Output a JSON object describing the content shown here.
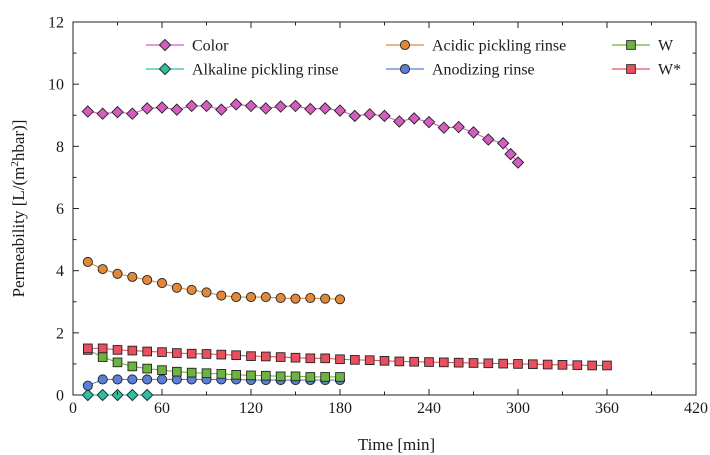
{
  "chart_data": {
    "type": "scatter",
    "xlabel": "Time [min]",
    "ylabel_parts": [
      "Permeability [L/(m",
      "2",
      "hbar)]"
    ],
    "xlim": [
      0,
      420
    ],
    "ylim": [
      0,
      12
    ],
    "xticks": [
      0,
      60,
      120,
      180,
      240,
      300,
      360,
      420
    ],
    "yticks": [
      0,
      2,
      4,
      6,
      8,
      10,
      12
    ],
    "grid": false,
    "legend": "top, two rows of three, inside plot",
    "series": [
      {
        "name": "Color",
        "marker": "diamond",
        "color": "#d45ec0",
        "x": [
          10,
          20,
          30,
          40,
          50,
          60,
          70,
          80,
          90,
          100,
          110,
          120,
          130,
          140,
          150,
          160,
          170,
          180,
          190,
          200,
          210,
          220,
          230,
          240,
          250,
          260,
          270,
          280,
          290,
          295,
          300
        ],
        "y": [
          9.12,
          9.05,
          9.1,
          9.05,
          9.22,
          9.25,
          9.18,
          9.3,
          9.3,
          9.18,
          9.35,
          9.3,
          9.22,
          9.28,
          9.3,
          9.2,
          9.22,
          9.15,
          8.98,
          9.03,
          8.98,
          8.8,
          8.9,
          8.78,
          8.6,
          8.62,
          8.45,
          8.22,
          8.1,
          7.75,
          7.48
        ]
      },
      {
        "name": "Alkaline pickling rinse",
        "marker": "diamond",
        "color": "#2ebfa0",
        "x": [
          10,
          20,
          30,
          40,
          50
        ],
        "y": [
          0,
          0,
          0,
          0,
          0
        ]
      },
      {
        "name": "Acidic pickling rinse",
        "marker": "circle",
        "color": "#e0893a",
        "x": [
          10,
          20,
          30,
          40,
          50,
          60,
          70,
          80,
          90,
          100,
          110,
          120,
          130,
          140,
          150,
          160,
          170,
          180
        ],
        "y": [
          4.28,
          4.05,
          3.9,
          3.8,
          3.7,
          3.6,
          3.45,
          3.38,
          3.3,
          3.2,
          3.15,
          3.15,
          3.15,
          3.12,
          3.1,
          3.12,
          3.1,
          3.08
        ]
      },
      {
        "name": "Anodizing rinse",
        "marker": "circle",
        "color": "#5b7fd6",
        "x": [
          10,
          20,
          30,
          40,
          50,
          60,
          70,
          80,
          90,
          100,
          110,
          120,
          130,
          140,
          150,
          160,
          170,
          180
        ],
        "y": [
          0.3,
          0.5,
          0.5,
          0.5,
          0.5,
          0.5,
          0.5,
          0.5,
          0.5,
          0.5,
          0.5,
          0.48,
          0.48,
          0.48,
          0.48,
          0.48,
          0.48,
          0.48
        ]
      },
      {
        "name": "W",
        "marker": "square",
        "color": "#6db33f",
        "x": [
          10,
          20,
          30,
          40,
          50,
          60,
          70,
          80,
          90,
          100,
          110,
          120,
          130,
          140,
          150,
          160,
          170,
          180
        ],
        "y": [
          1.45,
          1.22,
          1.05,
          0.92,
          0.85,
          0.8,
          0.75,
          0.72,
          0.7,
          0.68,
          0.65,
          0.63,
          0.62,
          0.6,
          0.6,
          0.58,
          0.58,
          0.58
        ]
      },
      {
        "name": "W*",
        "marker": "square",
        "color": "#e8505f",
        "x": [
          10,
          20,
          30,
          40,
          50,
          60,
          70,
          80,
          90,
          100,
          110,
          120,
          130,
          140,
          150,
          160,
          170,
          180,
          190,
          200,
          210,
          220,
          230,
          240,
          250,
          260,
          270,
          280,
          290,
          300,
          310,
          320,
          330,
          340,
          350,
          360
        ],
        "y": [
          1.5,
          1.5,
          1.45,
          1.43,
          1.4,
          1.38,
          1.35,
          1.33,
          1.32,
          1.3,
          1.28,
          1.25,
          1.24,
          1.22,
          1.2,
          1.18,
          1.18,
          1.15,
          1.13,
          1.12,
          1.1,
          1.08,
          1.07,
          1.06,
          1.05,
          1.04,
          1.03,
          1.02,
          1.01,
          1.0,
          0.99,
          0.98,
          0.97,
          0.96,
          0.95,
          0.95
        ]
      }
    ]
  }
}
